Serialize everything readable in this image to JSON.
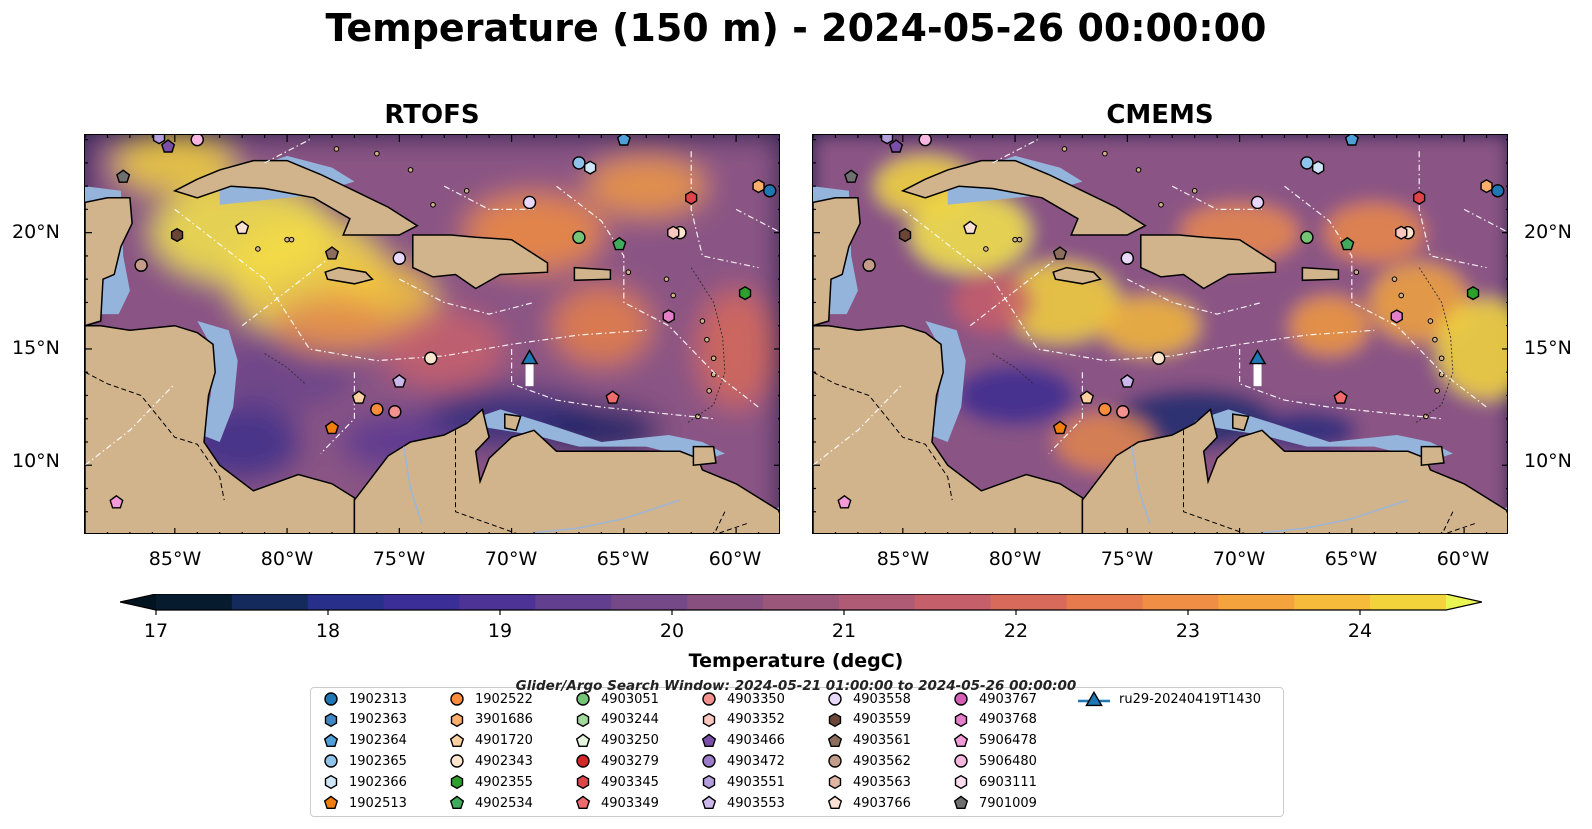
{
  "title": "Temperature (150 m) - 2024-05-26 00:00:00",
  "panels": [
    {
      "title": "RTOFS"
    },
    {
      "title": "CMEMS"
    }
  ],
  "lat_labels": [
    "20°N",
    "15°N",
    "10°N"
  ],
  "lon_labels": [
    "85°W",
    "80°W",
    "75°W",
    "70°W",
    "65°W",
    "60°W"
  ],
  "colorbar": {
    "label": "Temperature (degC)",
    "ticks": [
      "17",
      "18",
      "19",
      "20",
      "21",
      "22",
      "23",
      "24"
    ],
    "min": 17,
    "max": 24.5,
    "step": 0.5,
    "colors": [
      "#061c2e",
      "#142a5c",
      "#272f8a",
      "#3b2e96",
      "#4e3396",
      "#62408f",
      "#754987",
      "#88507f",
      "#9a577a",
      "#b05b75",
      "#c5606b",
      "#d86a5c",
      "#e77b4e",
      "#ef8e44",
      "#f5a33c",
      "#f6bb3a",
      "#f3d33c"
    ],
    "extend_low": "#041320",
    "extend_high": "#e8f552"
  },
  "map_colors": {
    "land": "#d2b48c",
    "shelf": "#95b4dc",
    "deep_low": "#0c2234"
  },
  "legend": {
    "title": "Glider/Argo Search Window: 2024-05-21 01:00:00 to 2024-05-26 00:00:00",
    "items": [
      {
        "label": "1902313",
        "marker": "circle",
        "color": "#1f77b4"
      },
      {
        "label": "1902363",
        "marker": "hexagon",
        "color": "#3f88c5"
      },
      {
        "label": "1902364",
        "marker": "pentagon",
        "color": "#4f9fd9"
      },
      {
        "label": "1902365",
        "marker": "circle",
        "color": "#8ec4ec"
      },
      {
        "label": "1902366",
        "marker": "hexagon",
        "color": "#cfe6f8"
      },
      {
        "label": "1902513",
        "marker": "pentagon",
        "color": "#f07f10"
      },
      {
        "label": "1902522",
        "marker": "circle",
        "color": "#fd8d3c"
      },
      {
        "label": "3901686",
        "marker": "hexagon",
        "color": "#fdae6b"
      },
      {
        "label": "4901720",
        "marker": "pentagon",
        "color": "#fdd0a2"
      },
      {
        "label": "4902343",
        "marker": "circle",
        "color": "#fee6ce"
      },
      {
        "label": "4902355",
        "marker": "hexagon",
        "color": "#2ca02c"
      },
      {
        "label": "4902534",
        "marker": "pentagon",
        "color": "#41ab5d"
      },
      {
        "label": "4903051",
        "marker": "circle",
        "color": "#74c476"
      },
      {
        "label": "4903244",
        "marker": "hexagon",
        "color": "#a1d99b"
      },
      {
        "label": "4903250",
        "marker": "pentagon",
        "color": "#e5f5e0"
      },
      {
        "label": "4903279",
        "marker": "circle",
        "color": "#d62728"
      },
      {
        "label": "4903345",
        "marker": "hexagon",
        "color": "#e04448"
      },
      {
        "label": "4903349",
        "marker": "pentagon",
        "color": "#ef6b6e"
      },
      {
        "label": "4903350",
        "marker": "circle",
        "color": "#f4908e"
      },
      {
        "label": "4903352",
        "marker": "hexagon",
        "color": "#fbc8c0"
      },
      {
        "label": "4903466",
        "marker": "pentagon",
        "color": "#7b4fa8"
      },
      {
        "label": "4903472",
        "marker": "circle",
        "color": "#9a7cc9"
      },
      {
        "label": "4903551",
        "marker": "hexagon",
        "color": "#b39ddb"
      },
      {
        "label": "4903553",
        "marker": "pentagon",
        "color": "#cdb8ee"
      },
      {
        "label": "4903558",
        "marker": "circle",
        "color": "#e8d8fb"
      },
      {
        "label": "4903559",
        "marker": "hexagon",
        "color": "#6b4638"
      },
      {
        "label": "4903561",
        "marker": "pentagon",
        "color": "#8c6d5e"
      },
      {
        "label": "4903562",
        "marker": "circle",
        "color": "#c49c8a"
      },
      {
        "label": "4903563",
        "marker": "hexagon",
        "color": "#e0b5a2"
      },
      {
        "label": "4903766",
        "marker": "pentagon",
        "color": "#fbe1d4"
      },
      {
        "label": "4903767",
        "marker": "circle",
        "color": "#d45fb5"
      },
      {
        "label": "4903768",
        "marker": "hexagon",
        "color": "#e67fc9"
      },
      {
        "label": "5906478",
        "marker": "pentagon",
        "color": "#f29bd6"
      },
      {
        "label": "5906480",
        "marker": "circle",
        "color": "#f7b6e0"
      },
      {
        "label": "6903111",
        "marker": "hexagon",
        "color": "#fcdcef"
      },
      {
        "label": "7901009",
        "marker": "pentagon",
        "color": "#6f6f6f"
      },
      {
        "label": "ru29-20240419T1430",
        "marker": "triangle-line",
        "color": "#1f77b4"
      }
    ]
  },
  "floats": [
    {
      "c": "#1f77b4",
      "m": "circle",
      "lon": -58.5,
      "lat": 21.8
    },
    {
      "c": "#4f9fd9",
      "m": "pentagon",
      "lon": -65.0,
      "lat": 24.0
    },
    {
      "c": "#8ec4ec",
      "m": "circle",
      "lon": -67.0,
      "lat": 23.0
    },
    {
      "c": "#cfe6f8",
      "m": "hexagon",
      "lon": -66.5,
      "lat": 22.8
    },
    {
      "c": "#f07f10",
      "m": "pentagon",
      "lon": -78.0,
      "lat": 11.6
    },
    {
      "c": "#fd8d3c",
      "m": "circle",
      "lon": -76.0,
      "lat": 12.4
    },
    {
      "c": "#fdae6b",
      "m": "hexagon",
      "lon": -59.0,
      "lat": 22.0
    },
    {
      "c": "#fdd0a2",
      "m": "pentagon",
      "lon": -76.8,
      "lat": 12.9
    },
    {
      "c": "#fee6ce",
      "m": "circle",
      "lon": -73.6,
      "lat": 14.6
    },
    {
      "c": "#fee6ce",
      "m": "circle",
      "lon": -62.5,
      "lat": 20.0
    },
    {
      "c": "#2ca02c",
      "m": "hexagon",
      "lon": -59.6,
      "lat": 17.4
    },
    {
      "c": "#41ab5d",
      "m": "pentagon",
      "lon": -65.2,
      "lat": 19.5
    },
    {
      "c": "#74c476",
      "m": "circle",
      "lon": -67.0,
      "lat": 19.8
    },
    {
      "c": "#e04448",
      "m": "hexagon",
      "lon": -62.0,
      "lat": 21.5
    },
    {
      "c": "#ef6b6e",
      "m": "pentagon",
      "lon": -65.5,
      "lat": 12.9
    },
    {
      "c": "#f4908e",
      "m": "circle",
      "lon": -75.2,
      "lat": 12.3
    },
    {
      "c": "#fbc8c0",
      "m": "hexagon",
      "lon": -62.8,
      "lat": 20.0
    },
    {
      "c": "#7b4fa8",
      "m": "pentagon",
      "lon": -85.3,
      "lat": 23.7
    },
    {
      "c": "#b39ddb",
      "m": "hexagon",
      "lon": -85.7,
      "lat": 24.1
    },
    {
      "c": "#cdb8ee",
      "m": "pentagon",
      "lon": -75.0,
      "lat": 13.6
    },
    {
      "c": "#e8d8fb",
      "m": "circle",
      "lon": -75.0,
      "lat": 18.9
    },
    {
      "c": "#e8d8fb",
      "m": "circle",
      "lon": -69.2,
      "lat": 21.3
    },
    {
      "c": "#6b4638",
      "m": "hexagon",
      "lon": -84.9,
      "lat": 19.9
    },
    {
      "c": "#8c6d5e",
      "m": "pentagon",
      "lon": -78.0,
      "lat": 19.1
    },
    {
      "c": "#c49c8a",
      "m": "circle",
      "lon": -86.5,
      "lat": 18.6
    },
    {
      "c": "#fbe1d4",
      "m": "pentagon",
      "lon": -82.0,
      "lat": 20.2
    },
    {
      "c": "#e67fc9",
      "m": "hexagon",
      "lon": -63.0,
      "lat": 16.4
    },
    {
      "c": "#f29bd6",
      "m": "pentagon",
      "lon": -87.6,
      "lat": 8.4
    },
    {
      "c": "#f7b6e0",
      "m": "circle",
      "lon": -84.0,
      "lat": 24.0
    },
    {
      "c": "#6f6f6f",
      "m": "pentagon",
      "lon": -87.3,
      "lat": 22.4
    }
  ],
  "glider": {
    "lon": -69.2,
    "lat": 14.6,
    "track_end_lat": 13.4
  }
}
